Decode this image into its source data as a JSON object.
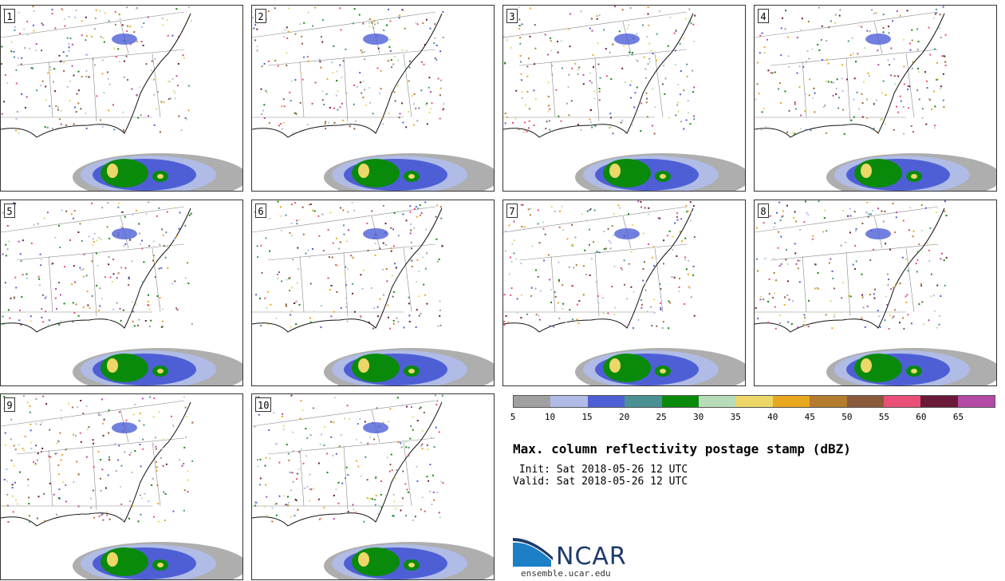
{
  "panels": [
    {
      "label": "1"
    },
    {
      "label": "2"
    },
    {
      "label": "3"
    },
    {
      "label": "4"
    },
    {
      "label": "5"
    },
    {
      "label": "6"
    },
    {
      "label": "7"
    },
    {
      "label": "8"
    },
    {
      "label": "9"
    },
    {
      "label": "10"
    }
  ],
  "colorbar": {
    "ticks": [
      "5",
      "10",
      "15",
      "20",
      "25",
      "30",
      "35",
      "40",
      "45",
      "50",
      "55",
      "60",
      "65"
    ],
    "colors": [
      "#a0a0a0",
      "#b0bce6",
      "#4e5fd6",
      "#4a9193",
      "#0a8a0a",
      "#b8dcb8",
      "#ecd768",
      "#e9a81e",
      "#b57b2e",
      "#8a5a3a",
      "#ea4f78",
      "#6a1a38",
      "#b44aa6"
    ]
  },
  "title": "Max. column reflectivity postage stamp (dBZ)",
  "init": " Init: Sat 2018-05-26 12 UTC",
  "valid": "Valid: Sat 2018-05-26 12 UTC",
  "logo": {
    "name": "NCAR",
    "url": "ensemble.ucar.edu"
  }
}
